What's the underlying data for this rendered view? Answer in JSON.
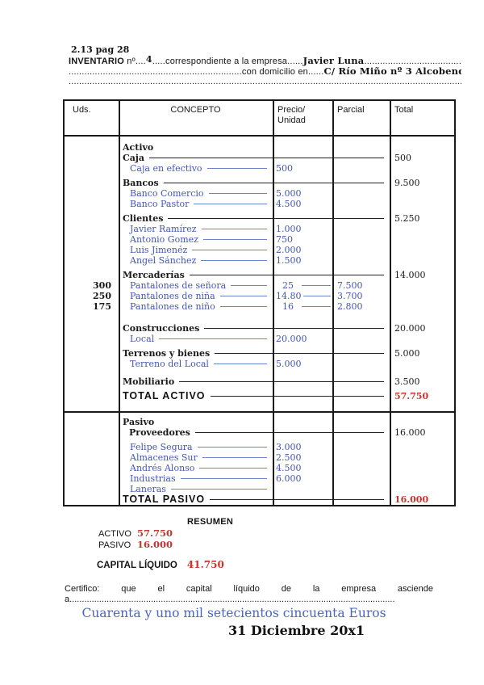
{
  "page": {
    "ref": "2.13 pag 28"
  },
  "form": {
    "title": "INVENTARIO",
    "no_label": " nº....",
    "no_value": "4",
    "mid": ".....correspondiente a la empresa......",
    "company": "Javier  Luna",
    "tail1": "................................................................................",
    "lead2": "..................................................................",
    "domicilio": "con domicilio en......",
    "address": "C/ Río Miño nº 3 Alcobendas",
    "tail2": "........................................",
    "ruler": "..................................................................................................................................................................................."
  },
  "table": {
    "headers": {
      "uds": "Uds.",
      "concepto": "CONCEPTO",
      "precio_line1": "Precio/",
      "precio_line2": "Unidad",
      "parcial": "Parcial",
      "total": "Total"
    },
    "rows": [
      {
        "type": "section",
        "label": "Activo",
        "gap": "s"
      },
      {
        "type": "category",
        "label": "Caja",
        "total": "500"
      },
      {
        "type": "item",
        "label": "Caja en efectivo",
        "precio": "500"
      },
      {
        "type": "category",
        "label": "Bancos",
        "total": "9.500",
        "gap": "s"
      },
      {
        "type": "item",
        "label": "Banco Comercio",
        "precio": "5.000"
      },
      {
        "type": "item",
        "label": "Banco Pastor",
        "precio": "4.500"
      },
      {
        "type": "category",
        "label": "Clientes",
        "total": "5.250",
        "gap": "s"
      },
      {
        "type": "item",
        "label": "Javier Ramírez",
        "precio": "1.000"
      },
      {
        "type": "item",
        "label": "Antonio Gomez",
        "precio": "750"
      },
      {
        "type": "item",
        "label": "Luis Jimenéz",
        "precio": "2.000"
      },
      {
        "type": "item",
        "label": "Angel Sánchez",
        "precio": "1.500"
      },
      {
        "type": "category",
        "label": "Mercaderías",
        "total": "14.000",
        "gap": "s"
      },
      {
        "type": "item",
        "label": "Pantalones de señora",
        "uds": "300",
        "precio": "25",
        "parcial": "7.500"
      },
      {
        "type": "item",
        "label": "Pantalones de niña",
        "uds": "250",
        "precio": "14.80",
        "parcial": "3.700"
      },
      {
        "type": "item",
        "label": "Pantalones de niño",
        "uds": "175",
        "precio": "16",
        "parcial": "2.800"
      },
      {
        "type": "category",
        "label": "Construcciones",
        "total": "20.000",
        "gap": "l"
      },
      {
        "type": "item",
        "label": "Local",
        "precio": "20.000"
      },
      {
        "type": "category",
        "label": "Terrenos y bienes",
        "total": "5.000",
        "gap": "s"
      },
      {
        "type": "item",
        "label": "Terreno del Local",
        "precio": "5.000"
      },
      {
        "type": "category",
        "label": "Mobiliario",
        "total": "3.500",
        "gap": "m"
      },
      {
        "type": "total",
        "label": "TOTAL ACTIVO",
        "total": "57.750",
        "red": true,
        "gap": "s"
      },
      {
        "type": "divider"
      },
      {
        "type": "section",
        "label": "Pasivo",
        "gap": "s"
      },
      {
        "type": "category",
        "label": "Proveedores",
        "total": "16.000",
        "indent": true
      },
      {
        "type": "item",
        "label": "Felipe Segura",
        "precio": "3.000",
        "gap": "s"
      },
      {
        "type": "item",
        "label": "Almacenes Sur",
        "precio": "2.500"
      },
      {
        "type": "item",
        "label": "Andrés Alonso",
        "precio": "4.500"
      },
      {
        "type": "item",
        "label": "Industrias",
        "precio": "6.000"
      },
      {
        "type": "item",
        "label": "Laneras"
      },
      {
        "type": "total",
        "label": "TOTAL PASIVO",
        "total": "16.000",
        "red": true
      }
    ]
  },
  "resumen": {
    "title": "RESUMEN",
    "activo_label": "ACTIVO",
    "activo_value": "57.750",
    "pasivo_label": "PASIVO",
    "pasivo_value": "16.000",
    "capital_label": "CAPITAL LÍQUIDO",
    "capital_value": "41.750"
  },
  "certificate": {
    "words": [
      "Certifico:",
      "que",
      "el",
      "capital",
      "líquido",
      "de",
      "la",
      "empresa",
      "asciende"
    ],
    "a_label": "a",
    "a_dots": "..........................................................................................................................................................",
    "amount_text": "Cuarenta y uno mil setecientos cincuenta Euros",
    "date": "31 Diciembre 20x1"
  },
  "colors": {
    "ink": "#1a1a1a",
    "entry_blue": "#4256b4",
    "hand_blue": "#4a66c5",
    "total_red": "#c8342e"
  }
}
